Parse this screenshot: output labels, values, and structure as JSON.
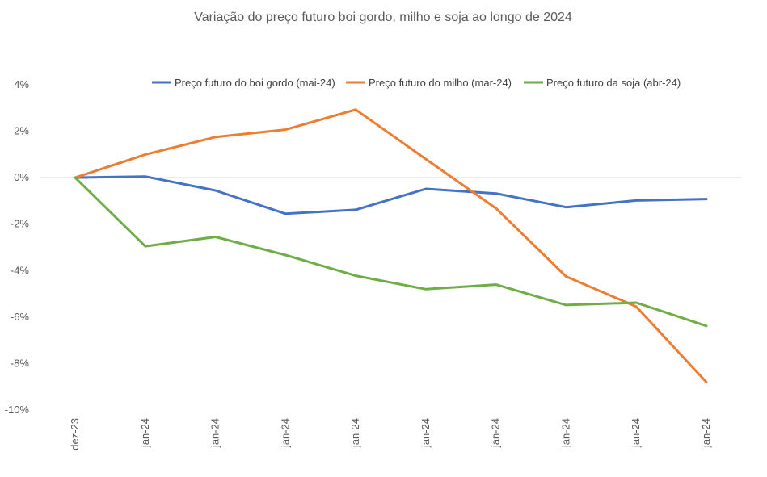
{
  "chart_data": {
    "type": "line",
    "title": "Variação do preço futuro boi gordo, milho e soja ao longo de 2024",
    "xlabel": "",
    "ylabel": "",
    "categories": [
      "dez-23",
      "jan-24",
      "jan-24",
      "jan-24",
      "jan-24",
      "jan-24",
      "jan-24",
      "jan-24",
      "jan-24",
      "jan-24"
    ],
    "ylim": [
      -10,
      4
    ],
    "yticks": [
      4,
      2,
      0,
      -2,
      -4,
      -6,
      -8,
      -10
    ],
    "ytick_labels": [
      "4%",
      "2%",
      "0%",
      "-2%",
      "-4%",
      "-6%",
      "-8%",
      "-10%"
    ],
    "grid": "zero line only",
    "legend_position": "top",
    "series": [
      {
        "name": "Preço futuro do boi gordo (mai-24)",
        "color": "#4472C4",
        "values": [
          0.0,
          0.05,
          -0.55,
          -1.55,
          -1.38,
          -0.48,
          -0.68,
          -1.27,
          -0.98,
          -0.92
        ]
      },
      {
        "name": "Preço futuro do milho (mar-24)",
        "color": "#ED7D31",
        "values": [
          0.0,
          1.0,
          1.75,
          2.07,
          2.93,
          0.8,
          -1.32,
          -4.25,
          -5.55,
          -8.8
        ]
      },
      {
        "name": "Preço futuro da soja (abr-24)",
        "color": "#70AD47",
        "values": [
          0.0,
          -2.95,
          -2.55,
          -3.33,
          -4.22,
          -4.8,
          -4.6,
          -5.48,
          -5.38,
          -6.38
        ]
      }
    ]
  }
}
